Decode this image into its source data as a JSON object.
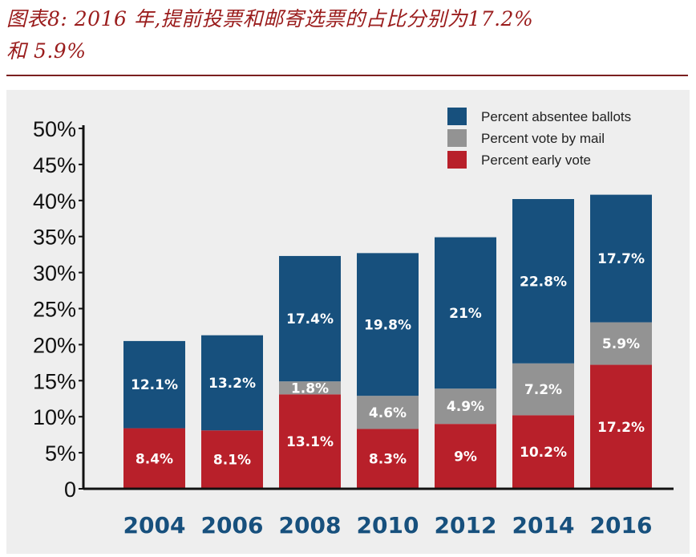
{
  "caption": {
    "line1": "图表8: 2016 年,提前投票和邮寄选票的占比分别为17.2%",
    "line2": "和 5.9%"
  },
  "colors": {
    "absentee": "#17507d",
    "mail": "#939393",
    "early": "#b8202a",
    "year_label": "#17507d",
    "caption": "#9a1c1c"
  },
  "chart_data": {
    "type": "bar",
    "stacked": true,
    "title": "",
    "xlabel": "",
    "ylabel": "",
    "ylim": [
      0,
      50
    ],
    "yticks": [
      {
        "value": 50,
        "label": "50%"
      },
      {
        "value": 45,
        "label": "45%"
      },
      {
        "value": 40,
        "label": "40%"
      },
      {
        "value": 35,
        "label": "35%"
      },
      {
        "value": 30,
        "label": "30%"
      },
      {
        "value": 25,
        "label": "25%"
      },
      {
        "value": 20,
        "label": "20%"
      },
      {
        "value": 15,
        "label": "15%"
      },
      {
        "value": 10,
        "label": "10%"
      },
      {
        "value": 5,
        "label": "5%"
      },
      {
        "value": 0,
        "label": "0"
      }
    ],
    "categories": [
      "2004",
      "2006",
      "2008",
      "2010",
      "2012",
      "2014",
      "2016"
    ],
    "legend_position": "top-right",
    "series": [
      {
        "name": "Percent early vote",
        "key": "early",
        "values": [
          8.4,
          8.1,
          13.1,
          8.3,
          9.0,
          10.2,
          17.2
        ],
        "labels": [
          "8.4%",
          "8.1%",
          "13.1%",
          "8.3%",
          "9%",
          "10.2%",
          "17.2%"
        ]
      },
      {
        "name": "Percent vote by mail",
        "key": "mail",
        "values": [
          0,
          0,
          1.8,
          4.6,
          4.9,
          7.2,
          5.9
        ],
        "labels": [
          "",
          "",
          "1.8%",
          "4.6%",
          "4.9%",
          "7.2%",
          "5.9%"
        ]
      },
      {
        "name": "Percent absentee ballots",
        "key": "absentee",
        "values": [
          12.1,
          13.2,
          17.4,
          19.8,
          21.0,
          22.8,
          17.7
        ],
        "labels": [
          "12.1%",
          "13.2%",
          "17.4%",
          "19.8%",
          "21%",
          "22.8%",
          "17.7%"
        ]
      }
    ],
    "legend": [
      {
        "label": "Percent absentee ballots",
        "key": "absentee"
      },
      {
        "label": "Percent vote by mail",
        "key": "mail"
      },
      {
        "label": "Percent early vote",
        "key": "early"
      }
    ]
  }
}
